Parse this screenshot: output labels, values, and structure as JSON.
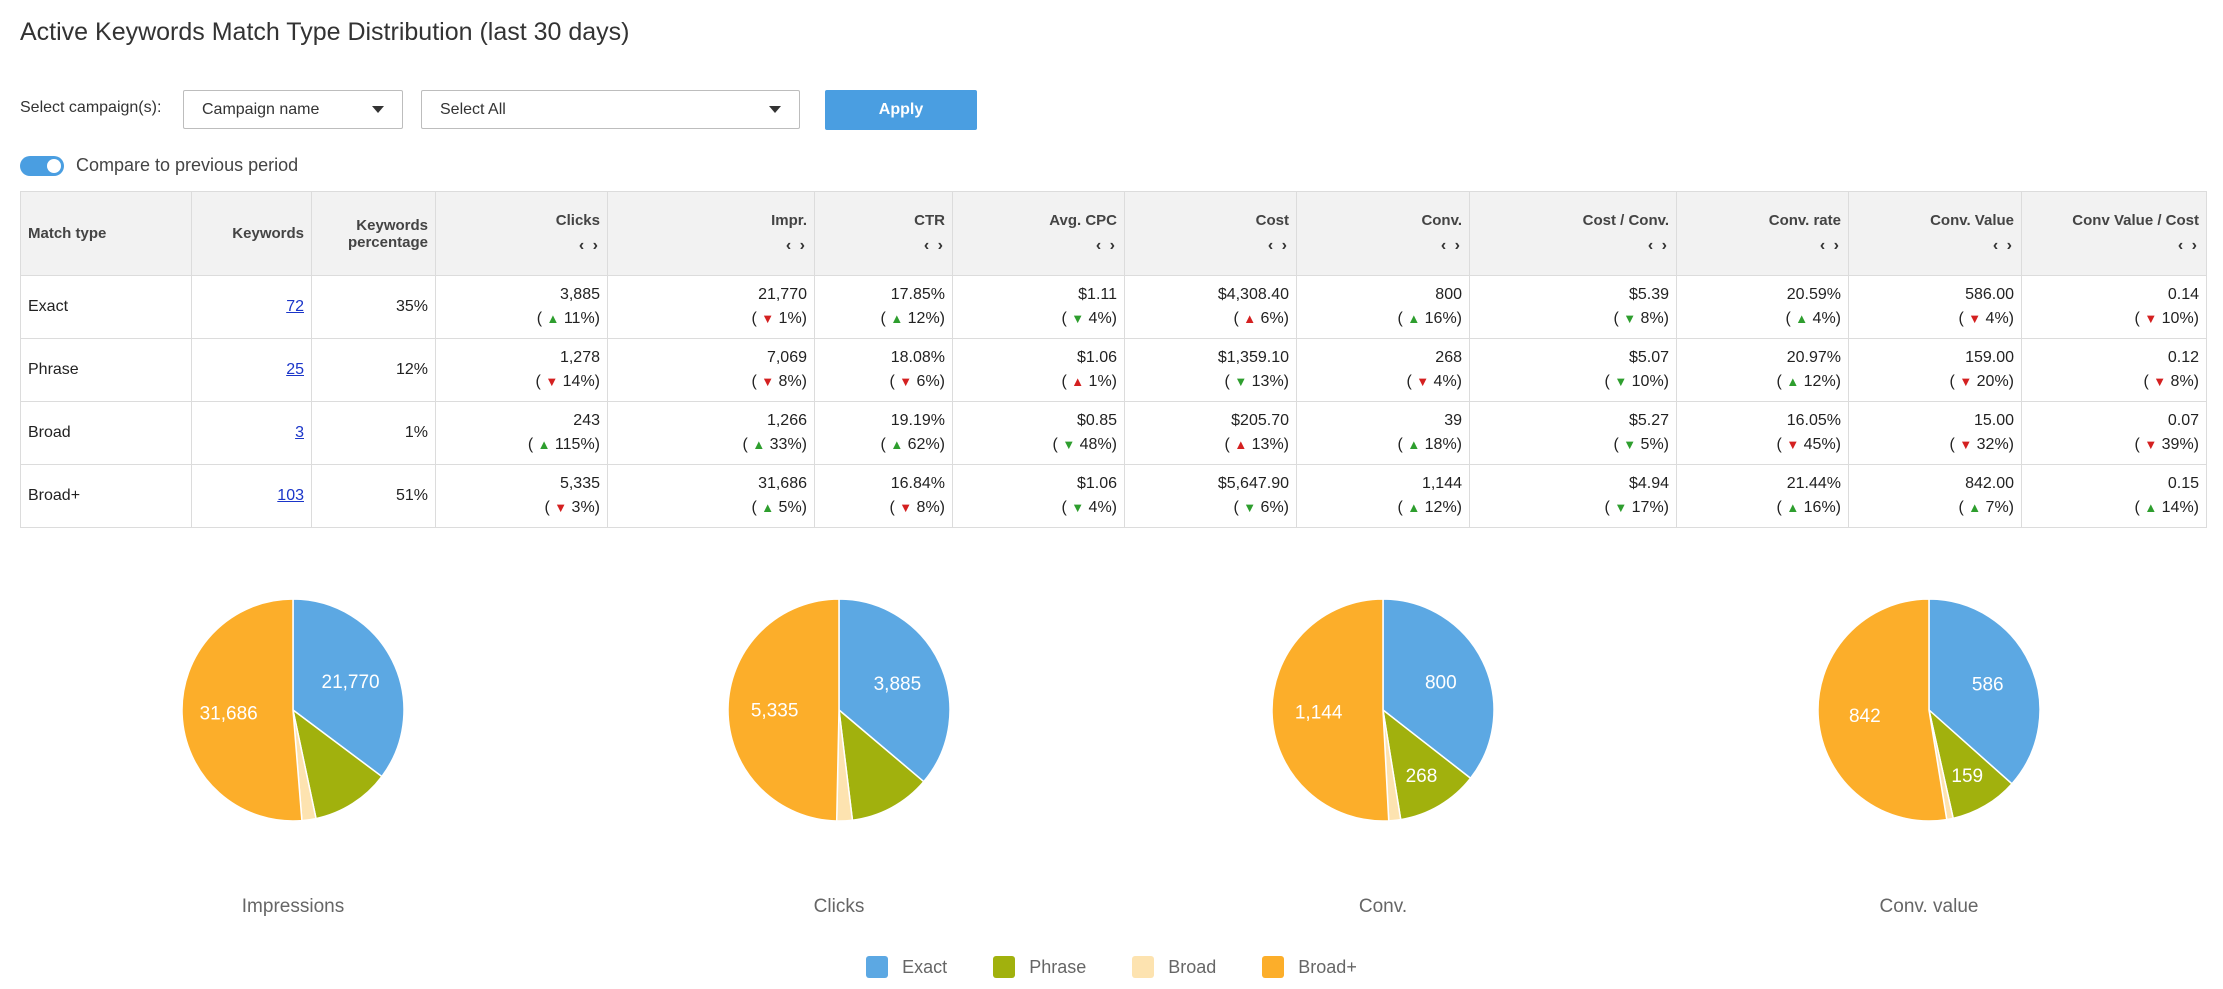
{
  "page": {
    "title": "Active Keywords Match Type Distribution (last 30 days)"
  },
  "filters": {
    "label": "Select campaign(s):",
    "campaign_dropdown": "Campaign name",
    "selection_dropdown": "Select All",
    "apply_label": "Apply",
    "compare_label": "Compare to previous period",
    "compare_enabled": true
  },
  "table": {
    "sort_glyph": "‹ ›",
    "headers": {
      "match_type": "Match type",
      "keywords": "Keywords",
      "kw_pct": "Keywords percentage",
      "clicks": "Clicks",
      "impr": "Impr.",
      "ctr": "CTR",
      "avg_cpc": "Avg. CPC",
      "cost": "Cost",
      "conv": "Conv.",
      "cost_conv": "Cost / Conv.",
      "conv_rate": "Conv. rate",
      "conv_value": "Conv. Value",
      "conv_value_cost": "Conv Value / Cost"
    },
    "rows": [
      {
        "match_type": "Exact",
        "keywords": "72",
        "kw_pct": "35%",
        "clicks": {
          "v": "3,885",
          "d": "up",
          "c": "11%"
        },
        "impr": {
          "v": "21,770",
          "d": "down",
          "c": "1%"
        },
        "ctr": {
          "v": "17.85%",
          "d": "up",
          "c": "12%"
        },
        "avg_cpc": {
          "v": "$1.11",
          "d": "downgood",
          "c": "4%"
        },
        "cost": {
          "v": "$4,308.40",
          "d": "upbad",
          "c": "6%"
        },
        "conv": {
          "v": "800",
          "d": "up",
          "c": "16%"
        },
        "cost_conv": {
          "v": "$5.39",
          "d": "downgood",
          "c": "8%"
        },
        "conv_rate": {
          "v": "20.59%",
          "d": "up",
          "c": "4%"
        },
        "conv_value": {
          "v": "586.00",
          "d": "down",
          "c": "4%"
        },
        "conv_value_cost": {
          "v": "0.14",
          "d": "down",
          "c": "10%"
        }
      },
      {
        "match_type": "Phrase",
        "keywords": "25",
        "kw_pct": "12%",
        "clicks": {
          "v": "1,278",
          "d": "down",
          "c": "14%"
        },
        "impr": {
          "v": "7,069",
          "d": "down",
          "c": "8%"
        },
        "ctr": {
          "v": "18.08%",
          "d": "down",
          "c": "6%"
        },
        "avg_cpc": {
          "v": "$1.06",
          "d": "upbad",
          "c": "1%"
        },
        "cost": {
          "v": "$1,359.10",
          "d": "downgood",
          "c": "13%"
        },
        "conv": {
          "v": "268",
          "d": "down",
          "c": "4%"
        },
        "cost_conv": {
          "v": "$5.07",
          "d": "downgood",
          "c": "10%"
        },
        "conv_rate": {
          "v": "20.97%",
          "d": "up",
          "c": "12%"
        },
        "conv_value": {
          "v": "159.00",
          "d": "down",
          "c": "20%"
        },
        "conv_value_cost": {
          "v": "0.12",
          "d": "down",
          "c": "8%"
        }
      },
      {
        "match_type": "Broad",
        "keywords": "3",
        "kw_pct": "1%",
        "clicks": {
          "v": "243",
          "d": "up",
          "c": "115%"
        },
        "impr": {
          "v": "1,266",
          "d": "up",
          "c": "33%"
        },
        "ctr": {
          "v": "19.19%",
          "d": "up",
          "c": "62%"
        },
        "avg_cpc": {
          "v": "$0.85",
          "d": "downgood",
          "c": "48%"
        },
        "cost": {
          "v": "$205.70",
          "d": "upbad",
          "c": "13%"
        },
        "conv": {
          "v": "39",
          "d": "up",
          "c": "18%"
        },
        "cost_conv": {
          "v": "$5.27",
          "d": "downgood",
          "c": "5%"
        },
        "conv_rate": {
          "v": "16.05%",
          "d": "down",
          "c": "45%"
        },
        "conv_value": {
          "v": "15.00",
          "d": "down",
          "c": "32%"
        },
        "conv_value_cost": {
          "v": "0.07",
          "d": "down",
          "c": "39%"
        }
      },
      {
        "match_type": "Broad+",
        "keywords": "103",
        "kw_pct": "51%",
        "clicks": {
          "v": "5,335",
          "d": "down",
          "c": "3%"
        },
        "impr": {
          "v": "31,686",
          "d": "up",
          "c": "5%"
        },
        "ctr": {
          "v": "16.84%",
          "d": "down",
          "c": "8%"
        },
        "avg_cpc": {
          "v": "$1.06",
          "d": "downgood",
          "c": "4%"
        },
        "cost": {
          "v": "$5,647.90",
          "d": "downgood",
          "c": "6%"
        },
        "conv": {
          "v": "1,144",
          "d": "up",
          "c": "12%"
        },
        "cost_conv": {
          "v": "$4.94",
          "d": "downgood",
          "c": "17%"
        },
        "conv_rate": {
          "v": "21.44%",
          "d": "up",
          "c": "16%"
        },
        "conv_value": {
          "v": "842.00",
          "d": "up",
          "c": "7%"
        },
        "conv_value_cost": {
          "v": "0.15",
          "d": "up",
          "c": "14%"
        }
      }
    ]
  },
  "colors": {
    "Exact": "#5ca8e3",
    "Phrase": "#a1b10d",
    "Broad": "#fde3b0",
    "Broad+": "#fcae2a",
    "up": "#2e9e2e",
    "down": "#d42020",
    "accent": "#4a9ee1"
  },
  "chart_data": [
    {
      "type": "pie",
      "title": "Impressions",
      "categories": [
        "Exact",
        "Phrase",
        "Broad",
        "Broad+"
      ],
      "values": [
        21770,
        7069,
        1266,
        31686
      ],
      "labels": [
        "21,770",
        "",
        "",
        "31,686"
      ]
    },
    {
      "type": "pie",
      "title": "Clicks",
      "categories": [
        "Exact",
        "Phrase",
        "Broad",
        "Broad+"
      ],
      "values": [
        3885,
        1278,
        243,
        5335
      ],
      "labels": [
        "3,885",
        "",
        "",
        "5,335"
      ]
    },
    {
      "type": "pie",
      "title": "Conv.",
      "categories": [
        "Exact",
        "Phrase",
        "Broad",
        "Broad+"
      ],
      "values": [
        800,
        268,
        39,
        1144
      ],
      "labels": [
        "800",
        "268",
        "",
        "1,144"
      ]
    },
    {
      "type": "pie",
      "title": "Conv. value",
      "categories": [
        "Exact",
        "Phrase",
        "Broad",
        "Broad+"
      ],
      "values": [
        586,
        159,
        15,
        842
      ],
      "labels": [
        "586",
        "159",
        "",
        "842"
      ]
    }
  ],
  "legend": {
    "placement": "bottom",
    "items": [
      "Exact",
      "Phrase",
      "Broad",
      "Broad+"
    ]
  }
}
